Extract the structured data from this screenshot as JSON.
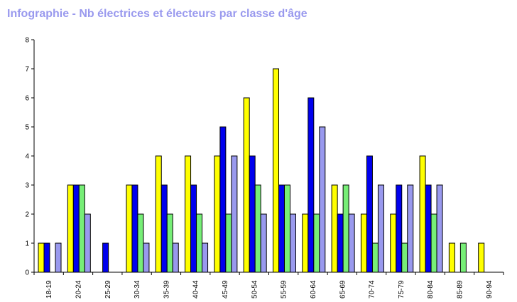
{
  "chart_data": {
    "type": "bar",
    "title": "Infographie - Nb électrices et électeurs par classe d'âge",
    "xlabel": "",
    "ylabel": "",
    "ylim": [
      0,
      8
    ],
    "yticks": [
      "0",
      "1",
      "2",
      "3",
      "4",
      "5",
      "6",
      "7",
      "8"
    ],
    "grid": false,
    "legend": "none",
    "categories": [
      "18-19",
      "20-24",
      "25-29",
      "30-34",
      "35-39",
      "40-44",
      "45-49",
      "50-54",
      "55-59",
      "60-64",
      "65-69",
      "70-74",
      "75-79",
      "80-84",
      "85-89",
      "90-94"
    ],
    "series": [
      {
        "color": "#ffff00",
        "values": [
          1,
          3,
          0,
          3,
          4,
          4,
          4,
          6,
          7,
          2,
          3,
          2,
          2,
          4,
          1,
          1
        ]
      },
      {
        "color": "#0000ee",
        "values": [
          1,
          3,
          1,
          3,
          3,
          3,
          5,
          4,
          3,
          6,
          2,
          4,
          3,
          3,
          0,
          0
        ]
      },
      {
        "color": "#77ee77",
        "values": [
          0,
          3,
          0,
          2,
          2,
          2,
          2,
          3,
          3,
          2,
          3,
          1,
          1,
          2,
          1,
          0
        ]
      },
      {
        "color": "#9999ee",
        "values": [
          1,
          2,
          0,
          1,
          1,
          1,
          4,
          2,
          2,
          5,
          2,
          3,
          3,
          3,
          0,
          0
        ]
      }
    ]
  }
}
